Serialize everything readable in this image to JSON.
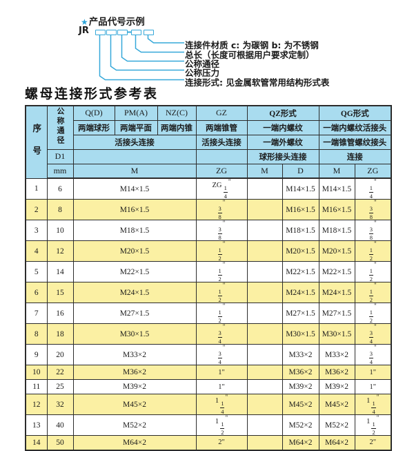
{
  "colors": {
    "header_bg": "#a9dcef",
    "row_alt_bg": "#fbf0a3",
    "accent_cyan": "#35a8d9",
    "border": "#2b2b2b",
    "text": "#1a1a1a"
  },
  "diagram": {
    "star": "★",
    "title": "产品代号示例",
    "code_prefix": "JR",
    "labels": [
      "连接件材质  c: 为碳钢  b: 为不锈钢",
      "总长（长度可根据用户要求定制）",
      "公称通径",
      "公称压力",
      "连接形式: 见金属软管常用结构形式表"
    ]
  },
  "table": {
    "title": "螺母连接形式参考表",
    "header": {
      "seq": "序号",
      "bore": "公称通径",
      "d1": "D1",
      "mm": "mm",
      "q": "Q(D)",
      "pm": "PM(A)",
      "nz": "NZ(C)",
      "gz": "GZ",
      "qz": "QZ形式",
      "qg": "QG形式",
      "q_desc": "两端球形",
      "pm_desc": "两端平面",
      "nz_desc": "两端内锥",
      "gz_desc": "两端锥管",
      "qz_desc1": "一端内螺纹",
      "qg_desc1": "一端内螺纹活接头",
      "union_conn": "活接头连接",
      "gz_conn": "活接头连接",
      "qz_desc2": "一端外螺纹",
      "qg_desc2": "一端锥管螺纹接头",
      "qz_conn": "球形接头连接",
      "qg_conn": "连接",
      "m": "M",
      "zg": "ZG",
      "qz_m": "M",
      "qz_d": "D",
      "qg_m": "M",
      "qg_zg": "ZG"
    },
    "columns_key": [
      "seq",
      "mm",
      "m",
      "zg",
      "qz_m",
      "qz_d",
      "qg_m",
      "qg_zg"
    ],
    "rows": [
      [
        "1",
        "6",
        "M14×1.5",
        "ZG 1/4\"",
        "",
        "M14×1.5",
        "M14×1.5",
        "1/4\""
      ],
      [
        "2",
        "8",
        "M16×1.5",
        "3/8\"",
        "",
        "M16×1.5",
        "M16×1.5",
        "3/8\""
      ],
      [
        "3",
        "10",
        "M18×1.5",
        "3/8\"",
        "",
        "M18×1.5",
        "M18×1.5",
        "3/8\""
      ],
      [
        "4",
        "12",
        "M20×1.5",
        "1/2\"",
        "",
        "M20×1.5",
        "M20×1.5",
        "1/2\""
      ],
      [
        "5",
        "14",
        "M22×1.5",
        "1/2\"",
        "",
        "M22×1.5",
        "M22×1.5",
        "1/2\""
      ],
      [
        "6",
        "15",
        "M24×1.5",
        "1/2\"",
        "",
        "M24×1.5",
        "M24×1.5",
        "1/2\""
      ],
      [
        "7",
        "16",
        "M27×1.5",
        "1/2\"",
        "",
        "M27×1.5",
        "M27×1.5",
        "1/2\""
      ],
      [
        "8",
        "18",
        "M30×1.5",
        "3/4\"",
        "",
        "M30×1.5",
        "M30×1.5",
        "3/4\""
      ],
      [
        "9",
        "20",
        "M33×2",
        "3/4\"",
        "",
        "M33×2",
        "M33×2",
        "3/4\""
      ],
      [
        "10",
        "22",
        "M36×2",
        "1\"",
        "",
        "M36×2",
        "M36×2",
        "1\""
      ],
      [
        "11",
        "25",
        "M39×2",
        "1\"",
        "",
        "M39×2",
        "M39×2",
        "1\""
      ],
      [
        "12",
        "32",
        "M45×2",
        "1 1/4\"",
        "",
        "M45×2",
        "M45×2",
        "1 1/4\""
      ],
      [
        "13",
        "40",
        "M52×2",
        "1 1/2\"",
        "",
        "M52×2",
        "M52×2",
        "1 1/2\""
      ],
      [
        "14",
        "50",
        "M64×2",
        "2\"",
        "",
        "M64×2",
        "M64×2",
        "2\""
      ]
    ]
  }
}
